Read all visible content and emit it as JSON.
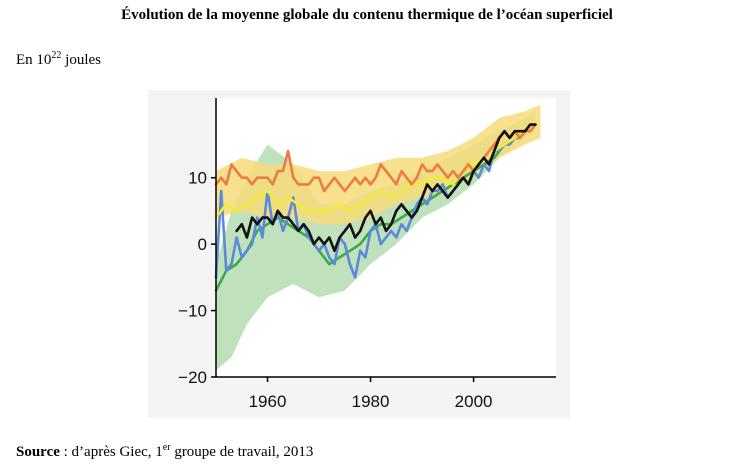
{
  "header": {
    "title": "Évolution de la moyenne globale du contenu thermique de l’océan superficiel",
    "unit_prefix": "En 10",
    "unit_exponent": "22",
    "unit_suffix": " joules"
  },
  "footer": {
    "source_label": "Source",
    "source_text_1": " : d’après Giec, 1",
    "source_sup": "er",
    "source_text_2": " groupe de travail, 2013"
  },
  "chart_data": {
    "type": "line",
    "title": "",
    "xlabel": "",
    "ylabel": "",
    "xlim": [
      1950,
      2016
    ],
    "ylim": [
      -20,
      22
    ],
    "xticks": [
      1960,
      1980,
      2000
    ],
    "yticks": [
      10,
      0,
      -10,
      -20
    ],
    "xtick_labels": [
      "1960",
      "1980",
      "2000"
    ],
    "ytick_labels": [
      "10",
      "0",
      "−10",
      "−20"
    ],
    "grid": false,
    "legend": "none",
    "bands": [
      {
        "color": "#b4dcb0",
        "x": [
          1950,
          1953,
          1956,
          1960,
          1965,
          1970,
          1975,
          1980,
          1985,
          1990,
          1995,
          2000,
          2005,
          2010,
          2012
        ],
        "upper": [
          -3,
          5,
          10,
          15,
          12,
          6,
          6,
          8,
          9,
          11,
          13,
          15,
          17,
          19,
          20
        ],
        "lower": [
          -19,
          -17,
          -12,
          -8,
          -6,
          -8,
          -7,
          -3,
          0,
          4,
          6,
          9,
          13,
          16,
          17
        ]
      },
      {
        "color": "#f6dc7a",
        "x": [
          1950,
          1955,
          1960,
          1965,
          1970,
          1975,
          1980,
          1985,
          1990,
          1995,
          2000,
          2005,
          2010,
          2013
        ],
        "upper": [
          11,
          13,
          12,
          12,
          11,
          11,
          12,
          13,
          13,
          14,
          16,
          19,
          20,
          21
        ],
        "lower": [
          4,
          5,
          4,
          4,
          3,
          3,
          4,
          6,
          7,
          8,
          10,
          13,
          15,
          16
        ]
      }
    ],
    "series": [
      {
        "color": "#3aab45",
        "x": [
          1950,
          1952,
          1954,
          1956,
          1958,
          1960,
          1962,
          1964,
          1966,
          1968,
          1970,
          1972,
          1974,
          1976,
          1978,
          1980,
          1982,
          1984,
          1986,
          1988,
          1990,
          1992,
          1994,
          1996,
          1998,
          2000,
          2002,
          2004,
          2006,
          2008,
          2010,
          2012
        ],
        "values": [
          -7,
          -4,
          -3,
          -1,
          2,
          3,
          4,
          3,
          2,
          1,
          -1,
          -3,
          -2,
          -1,
          0,
          2,
          3,
          3,
          4,
          5,
          6,
          7,
          8,
          9,
          10,
          11,
          12,
          13,
          15,
          16,
          17,
          18
        ]
      },
      {
        "color": "#5c8ad8",
        "x": [
          1950,
          1951,
          1952,
          1953,
          1954,
          1955,
          1956,
          1957,
          1958,
          1959,
          1960,
          1961,
          1962,
          1963,
          1964,
          1965,
          1966,
          1967,
          1968,
          1969,
          1970,
          1971,
          1972,
          1973,
          1974,
          1975,
          1976,
          1977,
          1978,
          1979,
          1980,
          1981,
          1982,
          1983,
          1984,
          1985,
          1986,
          1987,
          1988,
          1989,
          1990,
          1991,
          1992,
          1993,
          1994,
          1995,
          1996,
          1997,
          1998,
          1999,
          2000,
          2001,
          2002,
          2003,
          2004,
          2005,
          2006,
          2007,
          2008,
          2009,
          2010,
          2011,
          2012
        ],
        "values": [
          -5,
          8,
          -4,
          -3,
          1,
          -2,
          -1,
          0,
          4,
          1,
          8,
          3,
          5,
          2,
          4,
          7,
          2,
          3,
          1,
          0,
          -1,
          0,
          -2,
          -3,
          1,
          0,
          -3,
          -5,
          -1,
          -2,
          2,
          3,
          0,
          1,
          2,
          1,
          3,
          2,
          4,
          6,
          7,
          6,
          8,
          8,
          9,
          7,
          8,
          9,
          10,
          9,
          11,
          10,
          12,
          11,
          14,
          14,
          15,
          15,
          16,
          16,
          17,
          17,
          18
        ]
      },
      {
        "color": "#f4ea3a",
        "x": [
          1950,
          1952,
          1954,
          1956,
          1958,
          1960,
          1962,
          1964,
          1966,
          1968,
          1970,
          1972,
          1974,
          1976,
          1978,
          1980,
          1982,
          1984,
          1986,
          1988,
          1990,
          1992,
          1994,
          1996,
          1998,
          2000,
          2002,
          2004,
          2006,
          2008,
          2010,
          2012
        ],
        "values": [
          4,
          6,
          5,
          6,
          7,
          8,
          6,
          7,
          6,
          5,
          5,
          5,
          6,
          5,
          6,
          7,
          8,
          7,
          8,
          9,
          9,
          10,
          10,
          9,
          11,
          12,
          13,
          14,
          15,
          16,
          17,
          18
        ]
      },
      {
        "color": "#ee7c42",
        "x": [
          1950,
          1951,
          1952,
          1953,
          1954,
          1955,
          1956,
          1957,
          1958,
          1959,
          1960,
          1961,
          1962,
          1963,
          1964,
          1965,
          1966,
          1967,
          1968,
          1969,
          1970,
          1971,
          1972,
          1973,
          1974,
          1975,
          1976,
          1977,
          1978,
          1979,
          1980,
          1981,
          1982,
          1983,
          1984,
          1985,
          1986,
          1987,
          1988,
          1989,
          1990,
          1991,
          1992,
          1993,
          1994,
          1995,
          1996,
          1997,
          1998,
          1999,
          2000,
          2001,
          2002,
          2003,
          2004,
          2005,
          2006,
          2007,
          2008,
          2009,
          2010,
          2011,
          2012
        ],
        "values": [
          9,
          10,
          9,
          12,
          11,
          10,
          10,
          9,
          10,
          10,
          10,
          9,
          11,
          11,
          14,
          10,
          9,
          9,
          9,
          10,
          10,
          8,
          9,
          10,
          9,
          8,
          9,
          10,
          9,
          10,
          9,
          10,
          12,
          11,
          10,
          9,
          11,
          10,
          9,
          10,
          12,
          11,
          11,
          12,
          11,
          10,
          11,
          10,
          11,
          12,
          11,
          12,
          13,
          14,
          15,
          16,
          17,
          16,
          17,
          16,
          17,
          17,
          18
        ]
      },
      {
        "color": "#111111",
        "x": [
          1954,
          1955,
          1956,
          1957,
          1958,
          1959,
          1960,
          1961,
          1962,
          1963,
          1964,
          1965,
          1966,
          1967,
          1968,
          1969,
          1970,
          1971,
          1972,
          1973,
          1974,
          1975,
          1976,
          1977,
          1978,
          1979,
          1980,
          1981,
          1982,
          1983,
          1984,
          1985,
          1986,
          1987,
          1988,
          1989,
          1990,
          1991,
          1992,
          1993,
          1994,
          1995,
          1996,
          1997,
          1998,
          1999,
          2000,
          2001,
          2002,
          2003,
          2004,
          2005,
          2006,
          2007,
          2008,
          2009,
          2010,
          2011,
          2012
        ],
        "values": [
          2,
          3,
          1,
          4,
          3,
          4,
          4,
          3,
          5,
          4,
          4,
          3,
          2,
          3,
          2,
          0,
          1,
          0,
          1,
          -1,
          1,
          2,
          3,
          1,
          2,
          4,
          5,
          3,
          4,
          2,
          3,
          5,
          6,
          5,
          4,
          5,
          7,
          9,
          8,
          9,
          8,
          7,
          8,
          9,
          10,
          9,
          11,
          12,
          13,
          12,
          14,
          16,
          17,
          16,
          17,
          17,
          17,
          18,
          18
        ]
      }
    ]
  }
}
